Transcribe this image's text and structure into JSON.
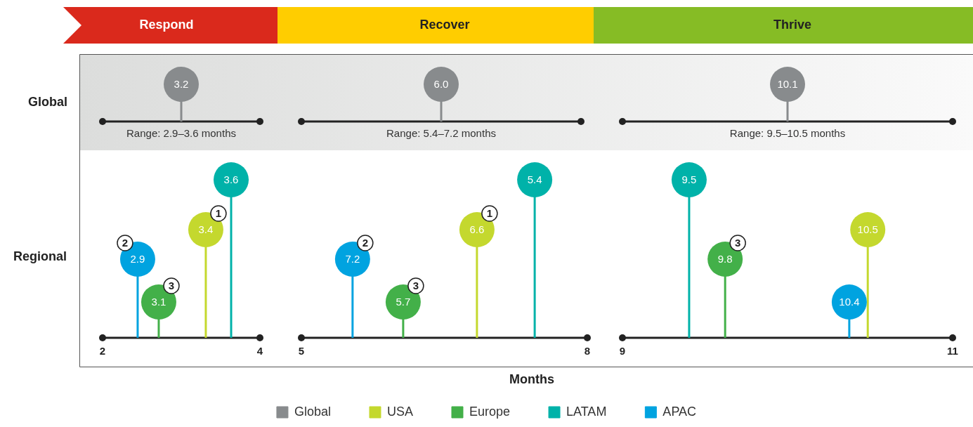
{
  "chart_data": {
    "type": "other",
    "xlabel": "Months",
    "categories": [
      "Respond",
      "Recover",
      "Thrive"
    ],
    "series": [
      {
        "name": "Global",
        "color": "#888b8d",
        "values": [
          3.2,
          6.0,
          10.1
        ],
        "value_labels": [
          "3.2",
          "6.0",
          "10.1"
        ]
      },
      {
        "name": "USA",
        "color": "#c4d82e",
        "values": [
          3.4,
          6.6,
          10.5
        ],
        "value_labels": [
          "3.4",
          "6.6",
          "10.5"
        ]
      },
      {
        "name": "Europe",
        "color": "#43b049",
        "values": [
          3.1,
          5.7,
          9.8
        ],
        "value_labels": [
          "3.1",
          "5.7",
          "9.8"
        ]
      },
      {
        "name": "LATAM",
        "color": "#00b2a9",
        "values": [
          3.6,
          5.4,
          9.5
        ],
        "value_labels": [
          "3.6",
          "5.4",
          "9.5"
        ]
      },
      {
        "name": "APAC",
        "color": "#00a3e0",
        "values": [
          2.9,
          7.2,
          10.4
        ],
        "value_labels": [
          "2.9",
          "7.2",
          "10.4"
        ]
      }
    ],
    "annotations": [
      "Global",
      "Regional",
      "Range: 2.9–3.6 months",
      "Range: 5.4–7.2 months",
      "Range: 9.5–10.5 months",
      "2",
      "4",
      "5",
      "8",
      "9",
      "11",
      "1",
      "2",
      "3",
      "1",
      "2",
      "3",
      "3"
    ],
    "legend": "bottom"
  }
}
